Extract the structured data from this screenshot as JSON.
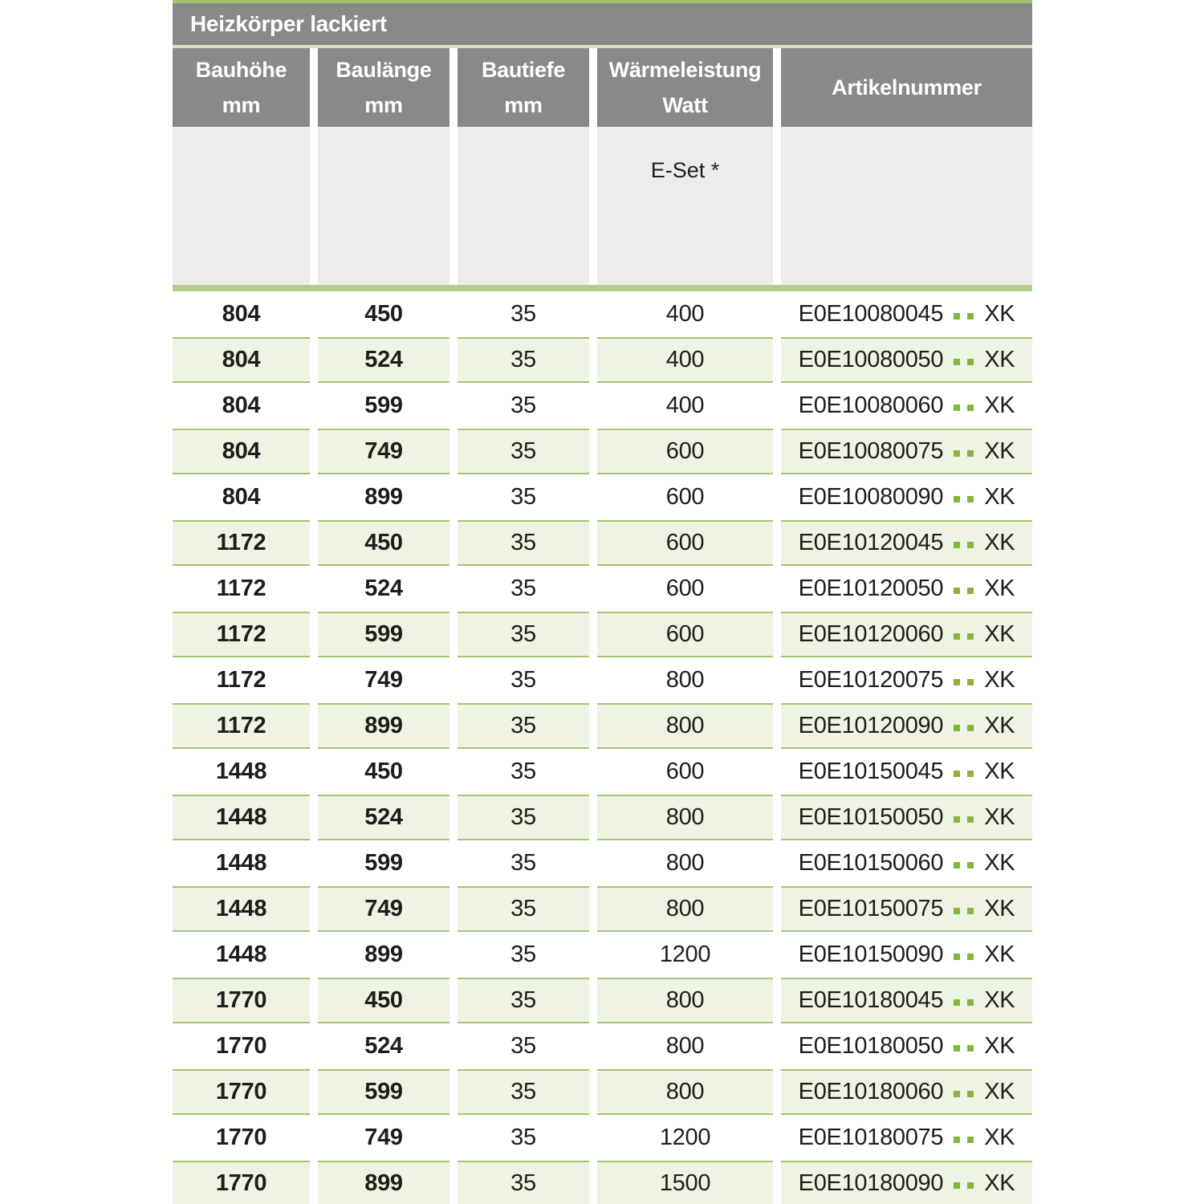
{
  "table": {
    "title": "Heizkörper lackiert",
    "columns": [
      {
        "label": "Bauhöhe",
        "unit": "mm"
      },
      {
        "label": "Baulänge",
        "unit": "mm"
      },
      {
        "label": "Bautiefe",
        "unit": "mm"
      },
      {
        "label": "Wärmeleistung",
        "unit": "Watt"
      },
      {
        "label": "Artikelnummer",
        "unit": ""
      }
    ],
    "subheader": {
      "e_set_label": "E-Set *"
    },
    "rows": [
      {
        "bauhoehe": "804",
        "baulaenge": "450",
        "bautiefe": "35",
        "watt": "400",
        "artikel_prefix": "E0E10080045",
        "artikel_suffix": "XK"
      },
      {
        "bauhoehe": "804",
        "baulaenge": "524",
        "bautiefe": "35",
        "watt": "400",
        "artikel_prefix": "E0E10080050",
        "artikel_suffix": "XK"
      },
      {
        "bauhoehe": "804",
        "baulaenge": "599",
        "bautiefe": "35",
        "watt": "400",
        "artikel_prefix": "E0E10080060",
        "artikel_suffix": "XK"
      },
      {
        "bauhoehe": "804",
        "baulaenge": "749",
        "bautiefe": "35",
        "watt": "600",
        "artikel_prefix": "E0E10080075",
        "artikel_suffix": "XK"
      },
      {
        "bauhoehe": "804",
        "baulaenge": "899",
        "bautiefe": "35",
        "watt": "600",
        "artikel_prefix": "E0E10080090",
        "artikel_suffix": "XK"
      },
      {
        "bauhoehe": "1172",
        "baulaenge": "450",
        "bautiefe": "35",
        "watt": "600",
        "artikel_prefix": "E0E10120045",
        "artikel_suffix": "XK"
      },
      {
        "bauhoehe": "1172",
        "baulaenge": "524",
        "bautiefe": "35",
        "watt": "600",
        "artikel_prefix": "E0E10120050",
        "artikel_suffix": "XK"
      },
      {
        "bauhoehe": "1172",
        "baulaenge": "599",
        "bautiefe": "35",
        "watt": "600",
        "artikel_prefix": "E0E10120060",
        "artikel_suffix": "XK"
      },
      {
        "bauhoehe": "1172",
        "baulaenge": "749",
        "bautiefe": "35",
        "watt": "800",
        "artikel_prefix": "E0E10120075",
        "artikel_suffix": "XK"
      },
      {
        "bauhoehe": "1172",
        "baulaenge": "899",
        "bautiefe": "35",
        "watt": "800",
        "artikel_prefix": "E0E10120090",
        "artikel_suffix": "XK"
      },
      {
        "bauhoehe": "1448",
        "baulaenge": "450",
        "bautiefe": "35",
        "watt": "600",
        "artikel_prefix": "E0E10150045",
        "artikel_suffix": "XK"
      },
      {
        "bauhoehe": "1448",
        "baulaenge": "524",
        "bautiefe": "35",
        "watt": "800",
        "artikel_prefix": "E0E10150050",
        "artikel_suffix": "XK"
      },
      {
        "bauhoehe": "1448",
        "baulaenge": "599",
        "bautiefe": "35",
        "watt": "800",
        "artikel_prefix": "E0E10150060",
        "artikel_suffix": "XK"
      },
      {
        "bauhoehe": "1448",
        "baulaenge": "749",
        "bautiefe": "35",
        "watt": "800",
        "artikel_prefix": "E0E10150075",
        "artikel_suffix": "XK"
      },
      {
        "bauhoehe": "1448",
        "baulaenge": "899",
        "bautiefe": "35",
        "watt": "1200",
        "artikel_prefix": "E0E10150090",
        "artikel_suffix": "XK"
      },
      {
        "bauhoehe": "1770",
        "baulaenge": "450",
        "bautiefe": "35",
        "watt": "800",
        "artikel_prefix": "E0E10180045",
        "artikel_suffix": "XK"
      },
      {
        "bauhoehe": "1770",
        "baulaenge": "524",
        "bautiefe": "35",
        "watt": "800",
        "artikel_prefix": "E0E10180050",
        "artikel_suffix": "XK"
      },
      {
        "bauhoehe": "1770",
        "baulaenge": "599",
        "bautiefe": "35",
        "watt": "800",
        "artikel_prefix": "E0E10180060",
        "artikel_suffix": "XK"
      },
      {
        "bauhoehe": "1770",
        "baulaenge": "749",
        "bautiefe": "35",
        "watt": "1200",
        "artikel_prefix": "E0E10180075",
        "artikel_suffix": "XK"
      },
      {
        "bauhoehe": "1770",
        "baulaenge": "899",
        "bautiefe": "35",
        "watt": "1500",
        "artikel_prefix": "E0E10180090",
        "artikel_suffix": "XK"
      }
    ]
  },
  "colors": {
    "header_gray": "#898989",
    "subheader_gray": "#ececec",
    "top_line_green": "#a4c26b",
    "divider_green": "#b3cc8b",
    "row_alt_green": "#eff3e3",
    "row_border_green": "#a6c472",
    "dot_green": "#87b43f",
    "text_black": "#1d1d1b",
    "text_white": "#ffffff"
  }
}
